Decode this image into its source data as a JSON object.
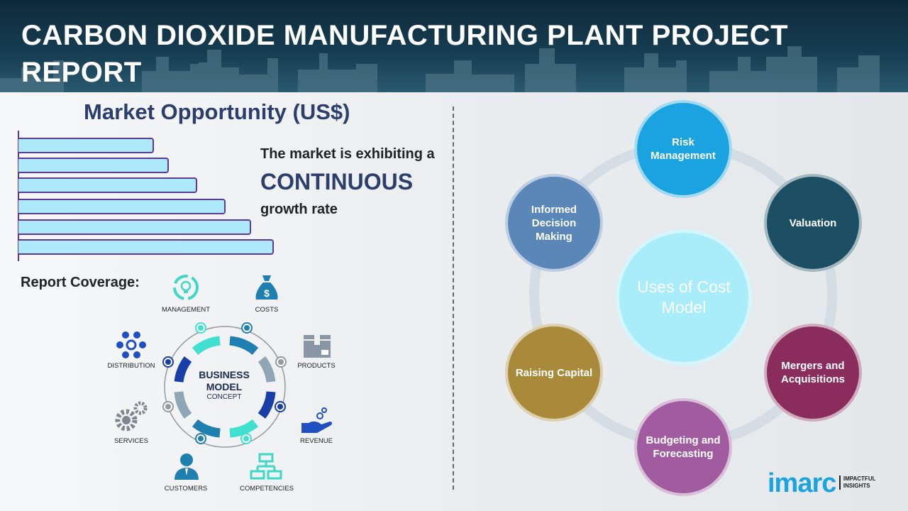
{
  "header": {
    "title": "CARBON DIOXIDE MANUFACTURING PLANT PROJECT REPORT"
  },
  "market": {
    "title": "Market Opportunity (US$)",
    "bar_levels": [
      0.53,
      0.59,
      0.7,
      0.81,
      0.91,
      1.0
    ],
    "line1": "The market is exhibiting a",
    "line2": "CONTINUOUS",
    "line3": "growth rate"
  },
  "coverage": {
    "title": "Report Coverage:",
    "center_line1": "BUSINESS",
    "center_line2": "MODEL",
    "center_line3": "CONCEPT",
    "items": [
      {
        "label": "MANAGEMENT",
        "icon": "lightbulb-cycle-icon"
      },
      {
        "label": "COSTS",
        "icon": "money-bag-icon"
      },
      {
        "label": "PRODUCTS",
        "icon": "box-icon"
      },
      {
        "label": "REVENUE",
        "icon": "hand-coins-icon"
      },
      {
        "label": "COMPETENCIES",
        "icon": "hierarchy-icon"
      },
      {
        "label": "CUSTOMERS",
        "icon": "user-icon"
      },
      {
        "label": "SERVICES",
        "icon": "gears-icon"
      },
      {
        "label": "DISTRIBUTION",
        "icon": "network-icon"
      }
    ]
  },
  "uses": {
    "center": "Uses of Cost Model",
    "nodes": [
      {
        "label": "Risk Management",
        "color": "#1aa3e0"
      },
      {
        "label": "Valuation",
        "color": "#1c4f63"
      },
      {
        "label": "Mergers and Acquisitions",
        "color": "#8a2d5c"
      },
      {
        "label": "Budgeting and Forecasting",
        "color": "#a15ca0"
      },
      {
        "label": "Raising Capital",
        "color": "#a88a3a"
      },
      {
        "label": "Informed Decision Making",
        "color": "#5a86b8"
      }
    ]
  },
  "logo": {
    "brand": "imarc",
    "tagline1": "IMPACTFUL",
    "tagline2": "INSIGHTS",
    "color": "#1aa3e0"
  }
}
